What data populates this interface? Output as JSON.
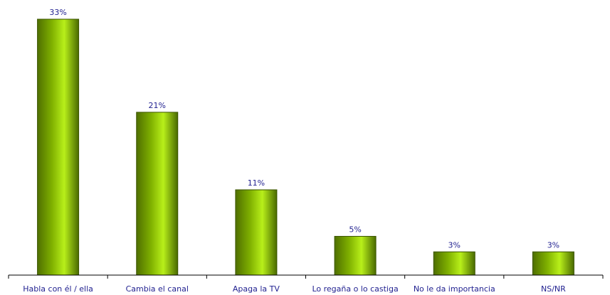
{
  "chart_data": {
    "type": "bar",
    "title": "",
    "xlabel": "",
    "ylabel": "",
    "categories": [
      "Habla con él / ella",
      "Cambia el canal",
      "Apaga la TV",
      "Lo regaña o lo castiga",
      "No le da importancia",
      "NS/NR"
    ],
    "values": [
      33,
      21,
      11,
      5,
      3,
      3
    ],
    "data_labels": [
      "33%",
      "21%",
      "11%",
      "5%",
      "3%",
      "3%"
    ],
    "ylim": [
      0,
      35
    ],
    "grid": false,
    "legend": "none",
    "colors": {
      "bar_dark": "#4f6f00",
      "bar_mid": "#7fb000",
      "bar_light": "#b8ef1a",
      "bar_edge": "#3b5400",
      "axis": "#000000",
      "label": "#1f1f8f"
    }
  }
}
